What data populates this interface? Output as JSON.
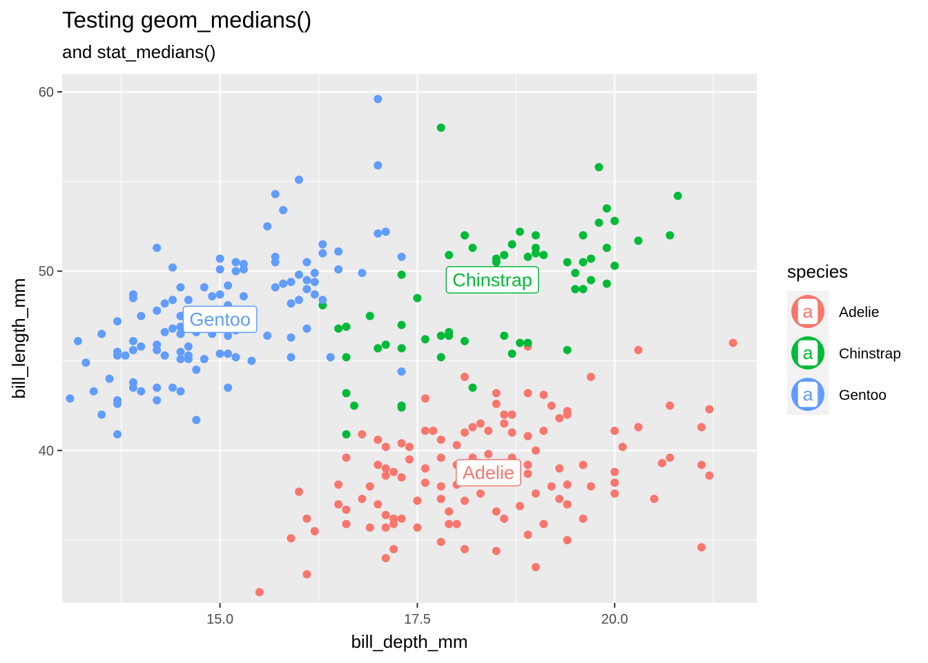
{
  "chart_data": {
    "type": "scatter",
    "title": "Testing geom_medians()",
    "subtitle": "and stat_medians()",
    "xlabel": "bill_depth_mm",
    "ylabel": "bill_length_mm",
    "xlim": [
      13.0,
      21.8
    ],
    "ylim": [
      31.5,
      61.0
    ],
    "x_ticks": [
      15.0,
      17.5,
      20.0
    ],
    "x_tick_labels": [
      "15.0",
      "17.5",
      "20.0"
    ],
    "y_ticks": [
      40,
      50,
      60
    ],
    "y_tick_labels": [
      "40",
      "50",
      "60"
    ],
    "grid": true,
    "legend": {
      "title": "species",
      "position": "right",
      "entries": [
        {
          "label": "Adelie",
          "key": "a"
        },
        {
          "label": "Chinstrap",
          "key": "a"
        },
        {
          "label": "Gentoo",
          "key": "a"
        }
      ]
    },
    "colors": {
      "Adelie": "#F8766D",
      "Chinstrap": "#00BA38",
      "Gentoo": "#619CFF"
    },
    "series": [
      {
        "name": "Adelie",
        "median": {
          "x": 18.4,
          "y": 38.8,
          "label": "Adelie"
        },
        "points": [
          [
            15.5,
            32.1
          ],
          [
            16.1,
            33.1
          ],
          [
            17.1,
            34.0
          ],
          [
            17.2,
            34.5
          ],
          [
            18.1,
            34.5
          ],
          [
            18.5,
            34.4
          ],
          [
            19.0,
            33.5
          ],
          [
            19.4,
            35.0
          ],
          [
            21.1,
            34.6
          ],
          [
            15.9,
            35.1
          ],
          [
            16.1,
            36.2
          ],
          [
            16.2,
            35.5
          ],
          [
            16.6,
            35.9
          ],
          [
            16.9,
            35.7
          ],
          [
            17.1,
            35.7
          ],
          [
            17.2,
            35.9
          ],
          [
            17.5,
            35.7
          ],
          [
            17.9,
            35.9
          ],
          [
            18.0,
            35.9
          ],
          [
            17.8,
            34.9
          ],
          [
            18.9,
            35.3
          ],
          [
            19.1,
            35.9
          ],
          [
            19.6,
            36.2
          ],
          [
            16.0,
            37.7
          ],
          [
            16.5,
            37.0
          ],
          [
            16.6,
            36.7
          ],
          [
            16.8,
            37.3
          ],
          [
            17.0,
            37.0
          ],
          [
            17.1,
            36.4
          ],
          [
            17.2,
            36.2
          ],
          [
            17.3,
            36.2
          ],
          [
            17.5,
            37.2
          ],
          [
            17.8,
            37.3
          ],
          [
            17.9,
            36.6
          ],
          [
            18.1,
            37.2
          ],
          [
            18.3,
            37.6
          ],
          [
            18.5,
            36.6
          ],
          [
            18.6,
            36.2
          ],
          [
            18.8,
            36.9
          ],
          [
            19.0,
            37.6
          ],
          [
            19.3,
            37.3
          ],
          [
            19.4,
            37.0
          ],
          [
            20.5,
            37.3
          ],
          [
            16.5,
            38.1
          ],
          [
            16.9,
            38.0
          ],
          [
            17.1,
            38.6
          ],
          [
            17.3,
            38.5
          ],
          [
            17.6,
            38.2
          ],
          [
            17.8,
            38.0
          ],
          [
            18.0,
            38.1
          ],
          [
            18.2,
            38.8
          ],
          [
            18.4,
            38.5
          ],
          [
            18.6,
            38.7
          ],
          [
            18.9,
            38.7
          ],
          [
            19.2,
            38.0
          ],
          [
            19.4,
            38.1
          ],
          [
            19.7,
            38.0
          ],
          [
            20.0,
            37.6
          ],
          [
            20.0,
            38.2
          ],
          [
            20.0,
            38.8
          ],
          [
            16.6,
            39.6
          ],
          [
            17.0,
            39.2
          ],
          [
            17.1,
            39.0
          ],
          [
            17.2,
            38.8
          ],
          [
            17.4,
            39.5
          ],
          [
            17.6,
            39.0
          ],
          [
            17.8,
            39.6
          ],
          [
            18.0,
            39.2
          ],
          [
            18.2,
            39.6
          ],
          [
            18.4,
            39.8
          ],
          [
            18.7,
            39.6
          ],
          [
            18.9,
            39.2
          ],
          [
            19.0,
            40.0
          ],
          [
            19.3,
            39.0
          ],
          [
            19.6,
            39.2
          ],
          [
            20.6,
            39.3
          ],
          [
            20.7,
            39.6
          ],
          [
            21.1,
            39.2
          ],
          [
            21.2,
            38.6
          ],
          [
            16.8,
            40.9
          ],
          [
            17.0,
            40.6
          ],
          [
            17.1,
            40.2
          ],
          [
            17.3,
            40.4
          ],
          [
            17.4,
            40.2
          ],
          [
            17.6,
            41.1
          ],
          [
            17.7,
            41.1
          ],
          [
            17.8,
            40.6
          ],
          [
            18.0,
            40.3
          ],
          [
            18.1,
            41.0
          ],
          [
            18.2,
            41.3
          ],
          [
            18.4,
            41.1
          ],
          [
            18.6,
            41.5
          ],
          [
            18.7,
            41.0
          ],
          [
            18.9,
            40.8
          ],
          [
            19.1,
            41.1
          ],
          [
            19.3,
            41.8
          ],
          [
            20.0,
            41.1
          ],
          [
            20.1,
            40.2
          ],
          [
            20.3,
            41.3
          ],
          [
            18.1,
            44.1
          ],
          [
            18.5,
            43.2
          ],
          [
            18.5,
            42.6
          ],
          [
            18.6,
            42.0
          ],
          [
            18.7,
            42.0
          ],
          [
            18.9,
            43.2
          ],
          [
            19.1,
            43.1
          ],
          [
            19.2,
            42.5
          ],
          [
            19.4,
            42.2
          ],
          [
            19.4,
            42.0
          ],
          [
            19.7,
            44.1
          ],
          [
            20.7,
            42.5
          ],
          [
            21.1,
            41.3
          ],
          [
            21.2,
            42.3
          ],
          [
            17.6,
            42.9
          ],
          [
            18.3,
            41.5
          ],
          [
            18.9,
            45.8
          ],
          [
            20.3,
            45.6
          ],
          [
            21.5,
            46.0
          ]
        ]
      },
      {
        "name": "Chinstrap",
        "median": {
          "x": 18.45,
          "y": 49.55,
          "label": "Chinstrap"
        },
        "points": [
          [
            17.8,
            58.0
          ],
          [
            19.8,
            55.8
          ],
          [
            20.8,
            54.2
          ],
          [
            19.9,
            53.5
          ],
          [
            20.0,
            52.8
          ],
          [
            19.8,
            52.7
          ],
          [
            18.1,
            52.0
          ],
          [
            18.8,
            52.2
          ],
          [
            19.0,
            52.0
          ],
          [
            19.6,
            52.0
          ],
          [
            20.7,
            52.0
          ],
          [
            20.3,
            51.7
          ],
          [
            18.2,
            51.3
          ],
          [
            18.7,
            51.5
          ],
          [
            19.0,
            51.3
          ],
          [
            19.9,
            51.3
          ],
          [
            17.9,
            50.9
          ],
          [
            18.5,
            50.5
          ],
          [
            18.5,
            50.7
          ],
          [
            18.6,
            50.9
          ],
          [
            18.9,
            50.8
          ],
          [
            19.0,
            51.0
          ],
          [
            19.1,
            50.9
          ],
          [
            19.4,
            50.5
          ],
          [
            19.6,
            50.5
          ],
          [
            19.7,
            50.7
          ],
          [
            20.0,
            50.3
          ],
          [
            19.5,
            49.9
          ],
          [
            19.7,
            49.5
          ],
          [
            19.6,
            49.0
          ],
          [
            19.5,
            49.0
          ],
          [
            19.9,
            49.3
          ],
          [
            17.3,
            49.8
          ],
          [
            17.5,
            48.5
          ],
          [
            16.3,
            48.1
          ],
          [
            16.9,
            47.5
          ],
          [
            16.5,
            46.8
          ],
          [
            16.6,
            46.9
          ],
          [
            17.3,
            47.0
          ],
          [
            17.8,
            46.4
          ],
          [
            17.9,
            46.6
          ],
          [
            17.9,
            46.4
          ],
          [
            18.6,
            46.4
          ],
          [
            18.1,
            46.1
          ],
          [
            18.9,
            46.0
          ],
          [
            18.8,
            46.0
          ],
          [
            18.7,
            45.4
          ],
          [
            19.4,
            45.6
          ],
          [
            17.1,
            45.9
          ],
          [
            17.0,
            45.7
          ],
          [
            17.3,
            45.7
          ],
          [
            17.6,
            46.2
          ],
          [
            17.8,
            45.2
          ],
          [
            16.6,
            45.2
          ],
          [
            18.2,
            43.5
          ],
          [
            16.6,
            43.2
          ],
          [
            16.7,
            42.5
          ],
          [
            17.3,
            42.4
          ],
          [
            17.3,
            42.5
          ],
          [
            16.6,
            40.9
          ]
        ]
      },
      {
        "name": "Gentoo",
        "median": {
          "x": 15.0,
          "y": 47.35,
          "label": "Gentoo"
        },
        "points": [
          [
            17.0,
            59.6
          ],
          [
            17.0,
            55.9
          ],
          [
            16.0,
            55.1
          ],
          [
            15.7,
            54.3
          ],
          [
            15.8,
            53.4
          ],
          [
            15.6,
            52.5
          ],
          [
            17.0,
            52.1
          ],
          [
            17.1,
            52.2
          ],
          [
            14.2,
            51.3
          ],
          [
            16.3,
            51.5
          ],
          [
            16.5,
            51.1
          ],
          [
            16.3,
            51.0
          ],
          [
            17.3,
            50.8
          ],
          [
            15.0,
            50.7
          ],
          [
            15.2,
            50.5
          ],
          [
            15.3,
            50.4
          ],
          [
            15.7,
            50.8
          ],
          [
            16.1,
            50.5
          ],
          [
            14.4,
            50.2
          ],
          [
            15.0,
            50.1
          ],
          [
            15.2,
            50.0
          ],
          [
            15.3,
            50.1
          ],
          [
            15.7,
            50.5
          ],
          [
            16.5,
            50.1
          ],
          [
            16.0,
            49.8
          ],
          [
            16.2,
            49.9
          ],
          [
            16.8,
            49.9
          ],
          [
            16.1,
            49.5
          ],
          [
            16.2,
            49.4
          ],
          [
            15.9,
            49.4
          ],
          [
            15.8,
            49.3
          ],
          [
            15.7,
            49.1
          ],
          [
            15.1,
            49.2
          ],
          [
            14.8,
            49.1
          ],
          [
            14.5,
            49.1
          ],
          [
            14.9,
            48.6
          ],
          [
            15.0,
            48.7
          ],
          [
            15.3,
            48.6
          ],
          [
            16.1,
            49.0
          ],
          [
            16.2,
            48.7
          ],
          [
            16.3,
            48.4
          ],
          [
            15.9,
            48.2
          ],
          [
            16.0,
            48.4
          ],
          [
            13.9,
            48.7
          ],
          [
            13.9,
            48.5
          ],
          [
            14.3,
            48.2
          ],
          [
            14.4,
            48.4
          ],
          [
            14.6,
            48.4
          ],
          [
            14.2,
            47.8
          ],
          [
            14.5,
            47.5
          ],
          [
            14.8,
            47.6
          ],
          [
            15.0,
            47.8
          ],
          [
            15.1,
            48.1
          ],
          [
            15.2,
            47.5
          ],
          [
            14.7,
            47.5
          ],
          [
            13.7,
            47.2
          ],
          [
            14.0,
            47.5
          ],
          [
            14.5,
            46.9
          ],
          [
            14.3,
            46.6
          ],
          [
            14.4,
            46.8
          ],
          [
            14.5,
            46.5
          ],
          [
            14.7,
            46.6
          ],
          [
            14.9,
            46.5
          ],
          [
            15.0,
            46.8
          ],
          [
            15.1,
            46.4
          ],
          [
            15.2,
            46.7
          ],
          [
            15.4,
            46.9
          ],
          [
            15.6,
            46.4
          ],
          [
            15.9,
            46.3
          ],
          [
            16.1,
            46.8
          ],
          [
            13.5,
            46.5
          ],
          [
            13.9,
            46.1
          ],
          [
            14.0,
            45.8
          ],
          [
            14.2,
            45.6
          ],
          [
            14.6,
            45.8
          ],
          [
            14.5,
            45.5
          ],
          [
            14.6,
            45.3
          ],
          [
            14.5,
            45.1
          ],
          [
            14.6,
            45.1
          ],
          [
            14.8,
            45.1
          ],
          [
            15.0,
            45.4
          ],
          [
            15.1,
            45.4
          ],
          [
            15.2,
            45.2
          ],
          [
            13.7,
            45.5
          ],
          [
            13.7,
            45.3
          ],
          [
            13.8,
            45.3
          ],
          [
            13.9,
            45.6
          ],
          [
            13.2,
            46.1
          ],
          [
            13.3,
            44.9
          ],
          [
            14.2,
            45.9
          ],
          [
            14.3,
            45.3
          ],
          [
            14.7,
            44.5
          ],
          [
            15.4,
            45.0
          ],
          [
            15.9,
            45.2
          ],
          [
            16.4,
            45.2
          ],
          [
            17.3,
            44.4
          ],
          [
            13.6,
            44.0
          ],
          [
            13.9,
            43.8
          ],
          [
            13.9,
            43.5
          ],
          [
            14.0,
            43.3
          ],
          [
            14.2,
            43.5
          ],
          [
            14.4,
            43.5
          ],
          [
            14.5,
            43.3
          ],
          [
            15.1,
            43.5
          ],
          [
            13.1,
            42.9
          ],
          [
            13.4,
            43.3
          ],
          [
            13.7,
            42.8
          ],
          [
            13.7,
            42.6
          ],
          [
            14.2,
            42.8
          ],
          [
            13.5,
            42.0
          ],
          [
            14.7,
            41.7
          ],
          [
            13.7,
            40.9
          ]
        ]
      }
    ]
  }
}
